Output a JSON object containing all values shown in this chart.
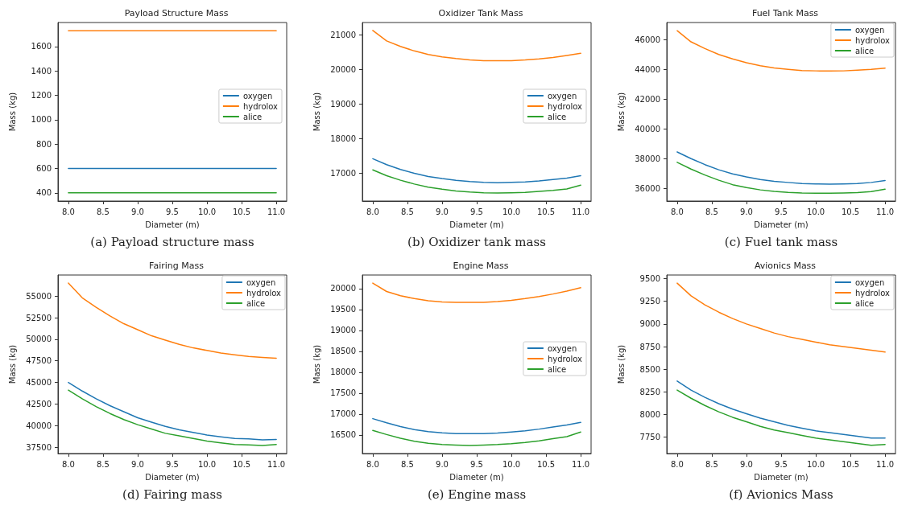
{
  "chart_data": [
    {
      "type": "line",
      "title": "Payload Structure Mass",
      "xlabel": "Diameter (m)",
      "ylabel": "Mass (kg)",
      "annotations": [
        "(a) Payload structure mass"
      ],
      "legend": "right",
      "grid": false,
      "x": [
        8.0,
        8.2,
        8.4,
        8.6,
        8.8,
        9.0,
        9.2,
        9.4,
        9.6,
        9.8,
        10.0,
        10.2,
        10.4,
        10.6,
        10.8,
        11.0
      ],
      "xlim": [
        7.85,
        11.15
      ],
      "xticks": [
        {
          "value": 8,
          "label": "8.0"
        },
        {
          "value": 8.5,
          "label": "8.5"
        },
        {
          "value": 9,
          "label": "9.0"
        },
        {
          "value": 9.5,
          "label": "9.5"
        },
        {
          "value": 10,
          "label": "10.0"
        },
        {
          "value": 10.5,
          "label": "10.5"
        },
        {
          "value": 11,
          "label": "11.0"
        }
      ],
      "ylim": [
        333,
        1797
      ],
      "yticks": [
        400,
        600,
        800,
        1000,
        1200,
        1400,
        1600
      ],
      "series": [
        {
          "name": "oxygen",
          "color": "#1f77b4",
          "values": [
            600,
            600,
            600,
            600,
            600,
            600,
            600,
            600,
            600,
            600,
            600,
            600,
            600,
            600,
            600,
            600
          ]
        },
        {
          "name": "hydrolox",
          "color": "#ff7f0e",
          "values": [
            1730,
            1730,
            1730,
            1730,
            1730,
            1730,
            1730,
            1730,
            1730,
            1730,
            1730,
            1730,
            1730,
            1730,
            1730,
            1730
          ]
        },
        {
          "name": "alice",
          "color": "#2ca02c",
          "values": [
            400,
            400,
            400,
            400,
            400,
            400,
            400,
            400,
            400,
            400,
            400,
            400,
            400,
            400,
            400,
            400
          ]
        }
      ]
    },
    {
      "type": "line",
      "title": "Oxidizer Tank Mass",
      "xlabel": "Diameter (m)",
      "ylabel": "Mass (kg)",
      "annotations": [
        "(b) Oxidizer tank mass"
      ],
      "legend": "right",
      "grid": false,
      "x": [
        8.0,
        8.2,
        8.4,
        8.6,
        8.8,
        9.0,
        9.2,
        9.4,
        9.6,
        9.8,
        10.0,
        10.2,
        10.4,
        10.6,
        10.8,
        11.0
      ],
      "xlim": [
        7.85,
        11.15
      ],
      "xticks": [
        {
          "value": 8,
          "label": "8.0"
        },
        {
          "value": 8.5,
          "label": "8.5"
        },
        {
          "value": 9,
          "label": "9.0"
        },
        {
          "value": 9.5,
          "label": "9.5"
        },
        {
          "value": 10,
          "label": "10.0"
        },
        {
          "value": 10.5,
          "label": "10.5"
        },
        {
          "value": 11,
          "label": "11.0"
        }
      ],
      "ylim": [
        16200,
        21350
      ],
      "yticks": [
        17000,
        18000,
        19000,
        20000,
        21000
      ],
      "series": [
        {
          "name": "oxygen",
          "color": "#1f77b4",
          "values": [
            17420,
            17250,
            17110,
            17000,
            16910,
            16850,
            16800,
            16760,
            16740,
            16730,
            16740,
            16750,
            16780,
            16820,
            16860,
            16930
          ]
        },
        {
          "name": "hydrolox",
          "color": "#ff7f0e",
          "values": [
            21120,
            20820,
            20660,
            20530,
            20430,
            20360,
            20310,
            20270,
            20250,
            20250,
            20250,
            20270,
            20300,
            20340,
            20400,
            20460
          ]
        },
        {
          "name": "alice",
          "color": "#2ca02c",
          "values": [
            17100,
            16930,
            16800,
            16690,
            16600,
            16540,
            16490,
            16460,
            16440,
            16430,
            16440,
            16450,
            16480,
            16510,
            16550,
            16660
          ]
        }
      ]
    },
    {
      "type": "line",
      "title": "Fuel Tank Mass",
      "xlabel": "Diameter (m)",
      "ylabel": "Mass (kg)",
      "annotations": [
        "(c) Fuel tank mass"
      ],
      "legend": "top right",
      "grid": false,
      "x": [
        8.0,
        8.2,
        8.4,
        8.6,
        8.8,
        9.0,
        9.2,
        9.4,
        9.6,
        9.8,
        10.0,
        10.2,
        10.4,
        10.6,
        10.8,
        11.0
      ],
      "xlim": [
        7.85,
        11.15
      ],
      "xticks": [
        {
          "value": 8,
          "label": "8.0"
        },
        {
          "value": 8.5,
          "label": "8.5"
        },
        {
          "value": 9,
          "label": "9.0"
        },
        {
          "value": 9.5,
          "label": "9.5"
        },
        {
          "value": 10,
          "label": "10.0"
        },
        {
          "value": 10.5,
          "label": "10.5"
        },
        {
          "value": 11,
          "label": "11.0"
        }
      ],
      "ylim": [
        35150,
        47150
      ],
      "yticks": [
        36000,
        38000,
        40000,
        42000,
        44000,
        46000
      ],
      "series": [
        {
          "name": "oxygen",
          "color": "#1f77b4",
          "values": [
            38450,
            38000,
            37600,
            37250,
            36970,
            36770,
            36600,
            36480,
            36400,
            36330,
            36300,
            36290,
            36300,
            36330,
            36400,
            36530
          ]
        },
        {
          "name": "hydrolox",
          "color": "#ff7f0e",
          "values": [
            46600,
            45850,
            45400,
            45000,
            44700,
            44450,
            44250,
            44100,
            44000,
            43920,
            43900,
            43890,
            43900,
            43950,
            44000,
            44080
          ]
        },
        {
          "name": "alice",
          "color": "#2ca02c",
          "values": [
            37750,
            37300,
            36900,
            36550,
            36250,
            36050,
            35900,
            35800,
            35730,
            35690,
            35680,
            35680,
            35690,
            35720,
            35780,
            35950
          ]
        }
      ]
    },
    {
      "type": "line",
      "title": "Fairing Mass",
      "xlabel": "Diameter (m)",
      "ylabel": "Mass (kg)",
      "annotations": [
        "(d) Fairing mass"
      ],
      "legend": "top right",
      "grid": false,
      "x": [
        8.0,
        8.2,
        8.4,
        8.6,
        8.8,
        9.0,
        9.2,
        9.4,
        9.6,
        9.8,
        10.0,
        10.2,
        10.4,
        10.6,
        10.8,
        11.0
      ],
      "xlim": [
        7.85,
        11.15
      ],
      "xticks": [
        {
          "value": 8,
          "label": "8.0"
        },
        {
          "value": 8.5,
          "label": "8.5"
        },
        {
          "value": 9,
          "label": "9.0"
        },
        {
          "value": 9.5,
          "label": "9.5"
        },
        {
          "value": 10,
          "label": "10.0"
        },
        {
          "value": 10.5,
          "label": "10.5"
        },
        {
          "value": 11,
          "label": "11.0"
        }
      ],
      "ylim": [
        36760,
        57440
      ],
      "yticks": [
        37500,
        40000,
        42500,
        45000,
        47500,
        50000,
        52500,
        55000
      ],
      "series": [
        {
          "name": "oxygen",
          "color": "#1f77b4",
          "values": [
            45000,
            44000,
            43100,
            42300,
            41600,
            40900,
            40400,
            39900,
            39500,
            39200,
            38900,
            38700,
            38500,
            38450,
            38350,
            38400
          ]
        },
        {
          "name": "hydrolox",
          "color": "#ff7f0e",
          "values": [
            56500,
            54800,
            53700,
            52700,
            51800,
            51100,
            50400,
            49900,
            49400,
            49000,
            48700,
            48400,
            48200,
            48000,
            47900,
            47800
          ]
        },
        {
          "name": "alice",
          "color": "#2ca02c",
          "values": [
            44100,
            43100,
            42200,
            41400,
            40700,
            40100,
            39600,
            39100,
            38800,
            38500,
            38200,
            38000,
            37800,
            37750,
            37700,
            37800
          ]
        }
      ]
    },
    {
      "type": "line",
      "title": "Engine Mass",
      "xlabel": "Diameter (m)",
      "ylabel": "Mass (kg)",
      "annotations": [
        "(e) Engine mass"
      ],
      "legend": "right",
      "grid": false,
      "x": [
        8.0,
        8.2,
        8.4,
        8.6,
        8.8,
        9.0,
        9.2,
        9.4,
        9.6,
        9.8,
        10.0,
        10.2,
        10.4,
        10.6,
        10.8,
        11.0
      ],
      "xlim": [
        7.85,
        11.15
      ],
      "xticks": [
        {
          "value": 8,
          "label": "8.0"
        },
        {
          "value": 8.5,
          "label": "8.5"
        },
        {
          "value": 9,
          "label": "9.0"
        },
        {
          "value": 9.5,
          "label": "9.5"
        },
        {
          "value": 10,
          "label": "10.0"
        },
        {
          "value": 10.5,
          "label": "10.5"
        },
        {
          "value": 11,
          "label": "11.0"
        }
      ],
      "ylim": [
        16056,
        20324
      ],
      "yticks": [
        16500,
        17000,
        17500,
        18000,
        18500,
        19000,
        19500,
        20000
      ],
      "series": [
        {
          "name": "oxygen",
          "color": "#1f77b4",
          "values": [
            16890,
            16790,
            16700,
            16630,
            16580,
            16550,
            16530,
            16530,
            16530,
            16545,
            16570,
            16600,
            16640,
            16690,
            16740,
            16800
          ]
        },
        {
          "name": "hydrolox",
          "color": "#ff7f0e",
          "values": [
            20130,
            19930,
            19830,
            19760,
            19710,
            19680,
            19670,
            19670,
            19670,
            19690,
            19720,
            19760,
            19810,
            19870,
            19940,
            20020
          ]
        },
        {
          "name": "alice",
          "color": "#2ca02c",
          "values": [
            16610,
            16510,
            16420,
            16350,
            16300,
            16270,
            16260,
            16250,
            16260,
            16270,
            16290,
            16320,
            16360,
            16410,
            16460,
            16570
          ]
        }
      ]
    },
    {
      "type": "line",
      "title": "Avionics Mass",
      "xlabel": "Diameter (m)",
      "ylabel": "Mass (kg)",
      "annotations": [
        "(f) Avionics Mass"
      ],
      "legend": "top right",
      "grid": false,
      "x": [
        8.0,
        8.2,
        8.4,
        8.6,
        8.8,
        9.0,
        9.2,
        9.4,
        9.6,
        9.8,
        10.0,
        10.2,
        10.4,
        10.6,
        10.8,
        11.0
      ],
      "xlim": [
        7.85,
        11.15
      ],
      "xticks": [
        {
          "value": 8,
          "label": "8.0"
        },
        {
          "value": 8.5,
          "label": "8.5"
        },
        {
          "value": 9,
          "label": "9.0"
        },
        {
          "value": 9.5,
          "label": "9.5"
        },
        {
          "value": 10,
          "label": "10.0"
        },
        {
          "value": 10.5,
          "label": "10.5"
        },
        {
          "value": 11,
          "label": "11.0"
        }
      ],
      "ylim": [
        7570,
        9540
      ],
      "yticks": [
        7750,
        8000,
        8250,
        8500,
        8750,
        9000,
        9250,
        9500
      ],
      "series": [
        {
          "name": "oxygen",
          "color": "#1f77b4",
          "values": [
            8370,
            8270,
            8190,
            8120,
            8060,
            8010,
            7960,
            7920,
            7880,
            7850,
            7820,
            7800,
            7780,
            7760,
            7740,
            7740
          ]
        },
        {
          "name": "hydrolox",
          "color": "#ff7f0e",
          "values": [
            9450,
            9310,
            9210,
            9130,
            9060,
            9000,
            8950,
            8900,
            8860,
            8830,
            8800,
            8770,
            8750,
            8730,
            8710,
            8690
          ]
        },
        {
          "name": "alice",
          "color": "#2ca02c",
          "values": [
            8270,
            8180,
            8100,
            8030,
            7970,
            7920,
            7870,
            7830,
            7800,
            7770,
            7740,
            7720,
            7700,
            7680,
            7660,
            7670
          ]
        }
      ]
    }
  ]
}
